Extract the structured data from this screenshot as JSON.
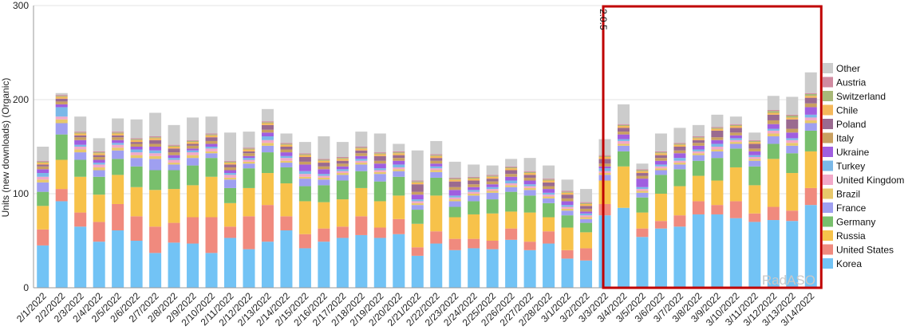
{
  "chart_data": {
    "type": "bar",
    "stacked": true,
    "ylabel": "Units (new downloads) (Organic)",
    "ylim": [
      0,
      300
    ],
    "yticks": [
      0,
      100,
      200,
      300
    ],
    "grid": true,
    "legend_placement": "right",
    "watermark": "RadASO",
    "annotation": {
      "label": "2.0.5",
      "x_start": "3/3/2022",
      "x_end": "3/14/2022",
      "color": "#c00000"
    },
    "categories": [
      "2/1/2022",
      "2/2/2022",
      "2/3/2022",
      "2/4/2022",
      "2/5/2022",
      "2/6/2022",
      "2/7/2022",
      "2/8/2022",
      "2/9/2022",
      "2/10/2022",
      "2/11/2022",
      "2/12/2022",
      "2/13/2022",
      "2/14/2022",
      "2/15/2022",
      "2/16/2022",
      "2/17/2022",
      "2/18/2022",
      "2/19/2022",
      "2/20/2022",
      "2/21/2022",
      "2/22/2022",
      "2/23/2022",
      "2/24/2022",
      "2/25/2022",
      "2/26/2022",
      "2/27/2022",
      "2/28/2022",
      "3/1/2022",
      "3/2/2022",
      "3/3/2022",
      "3/4/2022",
      "3/5/2022",
      "3/6/2022",
      "3/7/2022",
      "3/8/2022",
      "3/9/2022",
      "3/10/2022",
      "3/11/2022",
      "3/12/2022",
      "3/13/2022",
      "3/14/2022"
    ],
    "series": [
      {
        "name": "Korea",
        "color": "#72c3f5",
        "values": [
          45,
          92,
          65,
          49,
          61,
          50,
          37,
          48,
          47,
          37,
          53,
          41,
          49,
          61,
          42,
          49,
          53,
          56,
          53,
          57,
          34,
          47,
          40,
          42,
          41,
          51,
          40,
          47,
          31,
          29,
          77,
          85,
          54,
          63,
          65,
          78,
          78,
          74,
          70,
          72,
          71,
          88
        ]
      },
      {
        "name": "United States",
        "color": "#f08a7e",
        "values": [
          17,
          13,
          15,
          21,
          28,
          26,
          28,
          21,
          28,
          38,
          12,
          35,
          39,
          15,
          15,
          14,
          12,
          20,
          11,
          16,
          9,
          13,
          12,
          10,
          9,
          12,
          9,
          13,
          9,
          13,
          12,
          0,
          9,
          8,
          12,
          14,
          10,
          18,
          9,
          14,
          11,
          18
        ]
      },
      {
        "name": "Russia",
        "color": "#f7c24a",
        "values": [
          25,
          31,
          38,
          29,
          31,
          31,
          39,
          36,
          34,
          43,
          25,
          30,
          34,
          35,
          35,
          28,
          29,
          30,
          28,
          25,
          25,
          38,
          23,
          26,
          29,
          18,
          31,
          15,
          24,
          17,
          25,
          44,
          17,
          29,
          31,
          27,
          26,
          36,
          30,
          51,
          40,
          39
        ]
      },
      {
        "name": "Germany",
        "color": "#78bf6c",
        "values": [
          15,
          27,
          18,
          19,
          17,
          22,
          21,
          20,
          21,
          20,
          16,
          21,
          22,
          17,
          16,
          18,
          20,
          18,
          21,
          20,
          15,
          19,
          11,
          14,
          15,
          21,
          18,
          15,
          13,
          10,
          0,
          16,
          16,
          20,
          18,
          16,
          24,
          20,
          20,
          16,
          21,
          22
        ]
      },
      {
        "name": "France",
        "color": "#9f9ff0",
        "values": [
          10,
          12,
          8,
          7,
          9,
          9,
          12,
          6,
          8,
          5,
          9,
          5,
          7,
          5,
          8,
          6,
          6,
          7,
          8,
          6,
          5,
          6,
          6,
          6,
          7,
          5,
          6,
          5,
          5,
          4,
          6,
          6,
          5,
          5,
          5,
          6,
          7,
          5,
          6,
          8,
          8,
          8
        ]
      },
      {
        "name": "Brazil",
        "color": "#e8c86a",
        "values": [
          3,
          4,
          3,
          3,
          3,
          3,
          3,
          2,
          3,
          2,
          2,
          2,
          3,
          2,
          2,
          2,
          2,
          2,
          2,
          2,
          2,
          2,
          2,
          2,
          2,
          2,
          2,
          2,
          2,
          2,
          2,
          2,
          2,
          2,
          2,
          2,
          2,
          2,
          2,
          3,
          3,
          3
        ]
      },
      {
        "name": "United Kingdom",
        "color": "#f2a8c8",
        "values": [
          3,
          3,
          3,
          3,
          3,
          3,
          3,
          3,
          3,
          3,
          3,
          2,
          3,
          3,
          3,
          2,
          2,
          2,
          2,
          2,
          2,
          2,
          2,
          2,
          2,
          2,
          2,
          2,
          2,
          2,
          2,
          3,
          2,
          2,
          2,
          2,
          3,
          2,
          2,
          3,
          3,
          3
        ]
      },
      {
        "name": "Turkey",
        "color": "#7ab8e8",
        "values": [
          4,
          10,
          2,
          2,
          2,
          3,
          3,
          2,
          2,
          2,
          2,
          2,
          4,
          2,
          3,
          2,
          2,
          2,
          2,
          3,
          2,
          2,
          2,
          2,
          2,
          3,
          2,
          2,
          2,
          2,
          3,
          2,
          2,
          2,
          3,
          2,
          3,
          2,
          2,
          2,
          2,
          3
        ]
      },
      {
        "name": "Ukraine",
        "color": "#a05ee0",
        "values": [
          4,
          3,
          5,
          3,
          3,
          3,
          4,
          3,
          2,
          3,
          3,
          2,
          4,
          4,
          7,
          5,
          3,
          3,
          5,
          4,
          5,
          3,
          6,
          3,
          3,
          4,
          4,
          4,
          4,
          2,
          2,
          5,
          9,
          4,
          5,
          4,
          4,
          3,
          4,
          5,
          6,
          8
        ]
      },
      {
        "name": "Italy",
        "color": "#c9a060",
        "values": [
          3,
          3,
          3,
          3,
          3,
          3,
          3,
          3,
          3,
          3,
          3,
          3,
          3,
          3,
          3,
          3,
          3,
          3,
          3,
          3,
          3,
          3,
          3,
          3,
          3,
          3,
          3,
          3,
          3,
          3,
          3,
          3,
          3,
          3,
          3,
          3,
          3,
          3,
          3,
          4,
          4,
          4
        ]
      },
      {
        "name": "Poland",
        "color": "#9a6a90",
        "values": [
          2,
          3,
          2,
          2,
          2,
          2,
          4,
          4,
          2,
          4,
          3,
          2,
          5,
          3,
          5,
          4,
          3,
          3,
          5,
          3,
          8,
          3,
          6,
          4,
          3,
          4,
          3,
          4,
          4,
          3,
          5,
          4,
          3,
          3,
          4,
          3,
          7,
          5,
          5,
          6,
          10,
          6
        ]
      },
      {
        "name": "Chile",
        "color": "#f5b85a",
        "values": [
          2,
          2,
          2,
          2,
          2,
          2,
          2,
          2,
          2,
          2,
          2,
          2,
          2,
          2,
          2,
          2,
          2,
          2,
          2,
          2,
          2,
          2,
          2,
          2,
          2,
          2,
          2,
          2,
          2,
          2,
          2,
          2,
          2,
          2,
          2,
          2,
          2,
          2,
          2,
          2,
          2,
          2
        ]
      },
      {
        "name": "Switzerland",
        "color": "#a8b878",
        "values": [
          1,
          1,
          1,
          1,
          1,
          1,
          1,
          1,
          1,
          1,
          1,
          1,
          1,
          1,
          1,
          1,
          1,
          1,
          1,
          1,
          1,
          1,
          1,
          1,
          1,
          1,
          1,
          1,
          1,
          1,
          1,
          1,
          1,
          1,
          1,
          1,
          1,
          1,
          1,
          2,
          2,
          2
        ]
      },
      {
        "name": "Austria",
        "color": "#d08aa0",
        "values": [
          1,
          1,
          1,
          1,
          1,
          1,
          1,
          1,
          1,
          1,
          1,
          1,
          1,
          1,
          1,
          1,
          1,
          1,
          1,
          1,
          1,
          1,
          1,
          1,
          1,
          1,
          1,
          1,
          1,
          1,
          1,
          1,
          1,
          1,
          1,
          1,
          1,
          1,
          1,
          1,
          1,
          1
        ]
      },
      {
        "name": "Other",
        "color": "#cccccc",
        "values": [
          15,
          2,
          16,
          14,
          14,
          20,
          25,
          21,
          24,
          18,
          30,
          17,
          13,
          10,
          12,
          24,
          16,
          16,
          20,
          8,
          32,
          14,
          17,
          13,
          10,
          8,
          14,
          14,
          12,
          14,
          17,
          21,
          6,
          19,
          16,
          12,
          13,
          8,
          8,
          15,
          19,
          22
        ]
      }
    ]
  }
}
